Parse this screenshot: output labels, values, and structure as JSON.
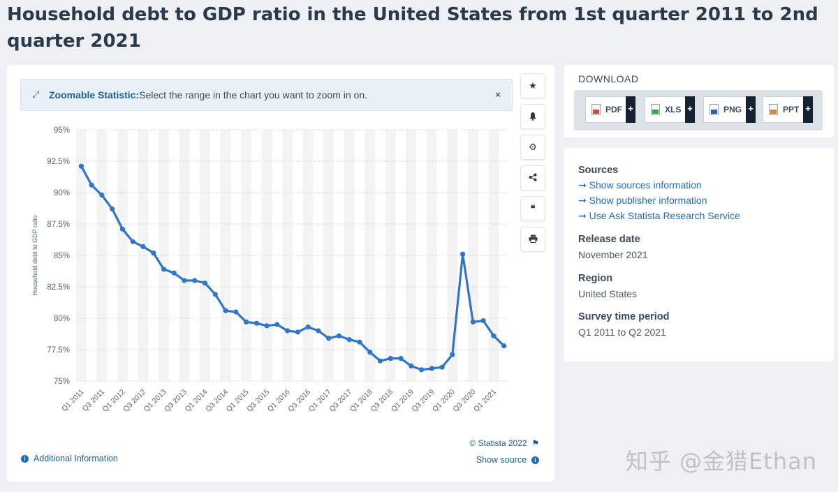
{
  "page": {
    "title": "Household debt to GDP ratio in the United States from 1st quarter 2011 to 2nd quarter 2021"
  },
  "zoom_banner": {
    "label": "Zoomable Statistic:",
    "text": "Select the range in the chart you want to zoom in on.",
    "close": "×"
  },
  "toolbar": {
    "star_icon": "★",
    "bell_icon": "🔔",
    "gear_icon": "⚙",
    "share_icon": "share",
    "quote_icon": "❝",
    "print_icon": "print"
  },
  "chart_data": {
    "type": "line",
    "title": "",
    "xlabel": "",
    "ylabel": "Household debt to GDP ratio",
    "ylim": [
      75,
      95
    ],
    "yticks": [
      "95%",
      "92.5%",
      "90%",
      "87.5%",
      "85%",
      "82.5%",
      "80%",
      "77.5%",
      "75%"
    ],
    "ytick_values": [
      95,
      92.5,
      90,
      87.5,
      85,
      82.5,
      80,
      77.5,
      75
    ],
    "xtick_labels": [
      "Q1 2011",
      "Q3 2011",
      "Q1 2012",
      "Q3 2012",
      "Q1 2013",
      "Q3 2013",
      "Q1 2014",
      "Q3 2014",
      "Q1 2015",
      "Q3 2015",
      "Q1 2016",
      "Q3 2016",
      "Q1 2017",
      "Q3 2017",
      "Q1 2018",
      "Q3 2018",
      "Q1 2019",
      "Q3 2019",
      "Q1 2020",
      "Q3 2020",
      "Q1 2021"
    ],
    "grid": true,
    "color": "#2f75c8",
    "series": [
      {
        "categories": [
          "Q1 2011",
          "Q2 2011",
          "Q3 2011",
          "Q4 2011",
          "Q1 2012",
          "Q2 2012",
          "Q3 2012",
          "Q4 2012",
          "Q1 2013",
          "Q2 2013",
          "Q3 2013",
          "Q4 2013",
          "Q1 2014",
          "Q2 2014",
          "Q3 2014",
          "Q4 2014",
          "Q1 2015",
          "Q2 2015",
          "Q3 2015",
          "Q4 2015",
          "Q1 2016",
          "Q2 2016",
          "Q3 2016",
          "Q4 2016",
          "Q1 2017",
          "Q2 2017",
          "Q3 2017",
          "Q4 2017",
          "Q1 2018",
          "Q2 2018",
          "Q3 2018",
          "Q4 2018",
          "Q1 2019",
          "Q2 2019",
          "Q3 2019",
          "Q4 2019",
          "Q1 2020",
          "Q2 2020",
          "Q3 2020",
          "Q4 2020",
          "Q1 2021",
          "Q2 2021"
        ],
        "values": [
          92.1,
          90.6,
          89.8,
          88.7,
          87.1,
          86.1,
          85.7,
          85.2,
          83.9,
          83.6,
          83.0,
          83.0,
          82.8,
          81.9,
          80.6,
          80.5,
          79.7,
          79.6,
          79.4,
          79.5,
          79.0,
          78.9,
          79.3,
          79.0,
          78.4,
          78.6,
          78.3,
          78.1,
          77.3,
          76.6,
          76.8,
          76.8,
          76.2,
          75.9,
          76.0,
          76.1,
          77.1,
          85.1,
          79.7,
          79.8,
          78.6,
          77.8
        ]
      }
    ]
  },
  "footer": {
    "credit": "© Statista 2022",
    "flag_icon": "⚑",
    "additional_info": "Additional Information",
    "show_source": "Show source",
    "info_icon": "i"
  },
  "download": {
    "title": "DOWNLOAD",
    "buttons": [
      {
        "label": "PDF",
        "color": "#d9433a"
      },
      {
        "label": "XLS",
        "color": "#3aa64a"
      },
      {
        "label": "PNG",
        "color": "#2f5fa8"
      },
      {
        "label": "PPT",
        "color": "#e0822a"
      }
    ],
    "plus": "+"
  },
  "info": {
    "sources_title": "Sources",
    "links": [
      "Show sources information",
      "Show publisher information",
      "Use Ask Statista Research Service"
    ],
    "arrow": "➞",
    "release_title": "Release date",
    "release_value": "November 2021",
    "region_title": "Region",
    "region_value": "United States",
    "period_title": "Survey time period",
    "period_value": "Q1 2011 to Q2 2021"
  },
  "watermark": "知乎 @金猎Ethan"
}
